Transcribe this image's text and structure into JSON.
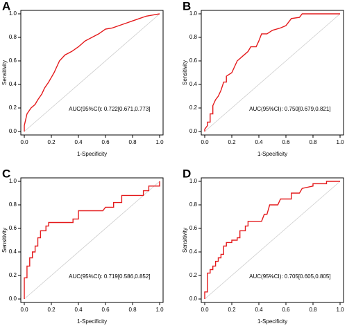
{
  "chart_data": [
    {
      "type": "line",
      "title": "A",
      "x_label": "1-Specificity",
      "y_label": "Sensitivity",
      "annotation": "AUC(95%CI): 0.722[0.671,0.773]",
      "color": "#e41a1c",
      "diagonal": true,
      "diagonal_color": "#cccccc",
      "xlim": [
        0,
        1
      ],
      "ylim": [
        0,
        1
      ],
      "xticks": [
        {
          "value": 0,
          "label": "0.0"
        },
        0.2,
        0.4,
        0.6,
        0.8,
        {
          "value": 1,
          "label": "1.0"
        }
      ],
      "yticks": [
        {
          "value": 0,
          "label": "0.0"
        },
        0.2,
        0.4,
        0.6,
        0.8,
        {
          "value": 1,
          "label": "1.0"
        }
      ],
      "x": [
        0,
        0,
        0.01,
        0.02,
        0.05,
        0.08,
        0.1,
        0.13,
        0.15,
        0.18,
        0.2,
        0.22,
        0.24,
        0.26,
        0.3,
        0.35,
        0.4,
        0.45,
        0.5,
        0.55,
        0.6,
        0.65,
        0.7,
        0.75,
        0.8,
        0.85,
        0.9,
        0.95,
        1
      ],
      "values": [
        0,
        0.05,
        0.1,
        0.15,
        0.2,
        0.23,
        0.27,
        0.32,
        0.37,
        0.42,
        0.46,
        0.5,
        0.55,
        0.6,
        0.65,
        0.68,
        0.72,
        0.77,
        0.8,
        0.83,
        0.87,
        0.88,
        0.9,
        0.92,
        0.94,
        0.96,
        0.98,
        0.99,
        1
      ]
    },
    {
      "type": "line",
      "title": "B",
      "x_label": "1-Specificity",
      "y_label": "Sensitivity",
      "annotation": "AUC(95%CI): 0.750[0.679,0.821]",
      "color": "#e41a1c",
      "diagonal": true,
      "diagonal_color": "#cccccc",
      "xlim": [
        0,
        1
      ],
      "ylim": [
        0,
        1
      ],
      "xticks": [
        {
          "value": 0,
          "label": "0.0"
        },
        0.2,
        0.4,
        0.6,
        0.8,
        {
          "value": 1,
          "label": "1.0"
        }
      ],
      "yticks": [
        {
          "value": 0,
          "label": "0.0"
        },
        0.2,
        0.4,
        0.6,
        0.8,
        {
          "value": 1,
          "label": "1.0"
        }
      ],
      "x": [
        0,
        0,
        0.02,
        0.02,
        0.04,
        0.04,
        0.06,
        0.06,
        0.08,
        0.1,
        0.12,
        0.14,
        0.16,
        0.16,
        0.2,
        0.22,
        0.24,
        0.28,
        0.32,
        0.34,
        0.38,
        0.4,
        0.42,
        0.46,
        0.5,
        0.56,
        0.6,
        0.62,
        0.64,
        0.7,
        0.72,
        1
      ],
      "values": [
        0,
        0.02,
        0.05,
        0.08,
        0.08,
        0.15,
        0.15,
        0.22,
        0.27,
        0.3,
        0.35,
        0.42,
        0.42,
        0.47,
        0.5,
        0.55,
        0.6,
        0.64,
        0.68,
        0.72,
        0.72,
        0.77,
        0.83,
        0.83,
        0.86,
        0.88,
        0.9,
        0.93,
        0.96,
        0.97,
        1,
        1
      ]
    },
    {
      "type": "line",
      "title": "C",
      "x_label": "1-Specificity",
      "y_label": "Sensitivity",
      "annotation": "AUC(95%CI): 0.719[0.586,0.852]",
      "color": "#e41a1c",
      "diagonal": true,
      "diagonal_color": "#cccccc",
      "xlim": [
        0,
        1
      ],
      "ylim": [
        0,
        1
      ],
      "xticks": [
        {
          "value": 0,
          "label": "0.0"
        },
        0.2,
        0.4,
        0.6,
        0.8,
        {
          "value": 1,
          "label": "1.0"
        }
      ],
      "yticks": [
        {
          "value": 0,
          "label": "0.0"
        },
        0.2,
        0.4,
        0.6,
        0.8,
        {
          "value": 1,
          "label": "1.0"
        }
      ],
      "x": [
        0,
        0,
        0.02,
        0.02,
        0.04,
        0.04,
        0.06,
        0.06,
        0.08,
        0.08,
        0.1,
        0.1,
        0.12,
        0.12,
        0.16,
        0.16,
        0.18,
        0.18,
        0.36,
        0.36,
        0.4,
        0.4,
        0.58,
        0.6,
        0.66,
        0.66,
        0.72,
        0.72,
        0.88,
        0.88,
        0.92,
        0.92,
        1,
        1
      ],
      "values": [
        0,
        0.18,
        0.18,
        0.28,
        0.28,
        0.35,
        0.35,
        0.4,
        0.4,
        0.45,
        0.45,
        0.52,
        0.52,
        0.58,
        0.58,
        0.62,
        0.62,
        0.65,
        0.65,
        0.68,
        0.68,
        0.75,
        0.75,
        0.78,
        0.78,
        0.82,
        0.82,
        0.88,
        0.88,
        0.92,
        0.92,
        0.96,
        0.96,
        1
      ]
    },
    {
      "type": "line",
      "title": "D",
      "x_label": "1-Specificity",
      "y_label": "Sensitivity",
      "annotation": "AUC(95%CI): 0.705[0.605,0.805]",
      "color": "#e41a1c",
      "diagonal": true,
      "diagonal_color": "#cccccc",
      "xlim": [
        0,
        1
      ],
      "ylim": [
        0,
        1
      ],
      "xticks": [
        {
          "value": 0,
          "label": "0.0"
        },
        0.2,
        0.4,
        0.6,
        0.8,
        {
          "value": 1,
          "label": "1.0"
        }
      ],
      "yticks": [
        {
          "value": 0,
          "label": "0.0"
        },
        0.2,
        0.4,
        0.6,
        0.8,
        {
          "value": 1,
          "label": "1.0"
        }
      ],
      "x": [
        0,
        0,
        0.02,
        0.02,
        0.04,
        0.04,
        0.06,
        0.06,
        0.08,
        0.08,
        0.1,
        0.1,
        0.12,
        0.12,
        0.14,
        0.14,
        0.16,
        0.16,
        0.2,
        0.2,
        0.24,
        0.24,
        0.26,
        0.26,
        0.3,
        0.3,
        0.32,
        0.32,
        0.42,
        0.44,
        0.46,
        0.48,
        0.54,
        0.56,
        0.64,
        0.64,
        0.7,
        0.72,
        0.8,
        0.8,
        0.9,
        0.9,
        1
      ],
      "values": [
        0,
        0.06,
        0.06,
        0.22,
        0.22,
        0.25,
        0.25,
        0.28,
        0.28,
        0.32,
        0.32,
        0.35,
        0.35,
        0.38,
        0.38,
        0.45,
        0.45,
        0.48,
        0.48,
        0.5,
        0.5,
        0.52,
        0.52,
        0.58,
        0.58,
        0.62,
        0.62,
        0.66,
        0.66,
        0.72,
        0.72,
        0.8,
        0.8,
        0.85,
        0.85,
        0.9,
        0.9,
        0.94,
        0.96,
        0.98,
        0.98,
        1,
        1
      ]
    }
  ]
}
